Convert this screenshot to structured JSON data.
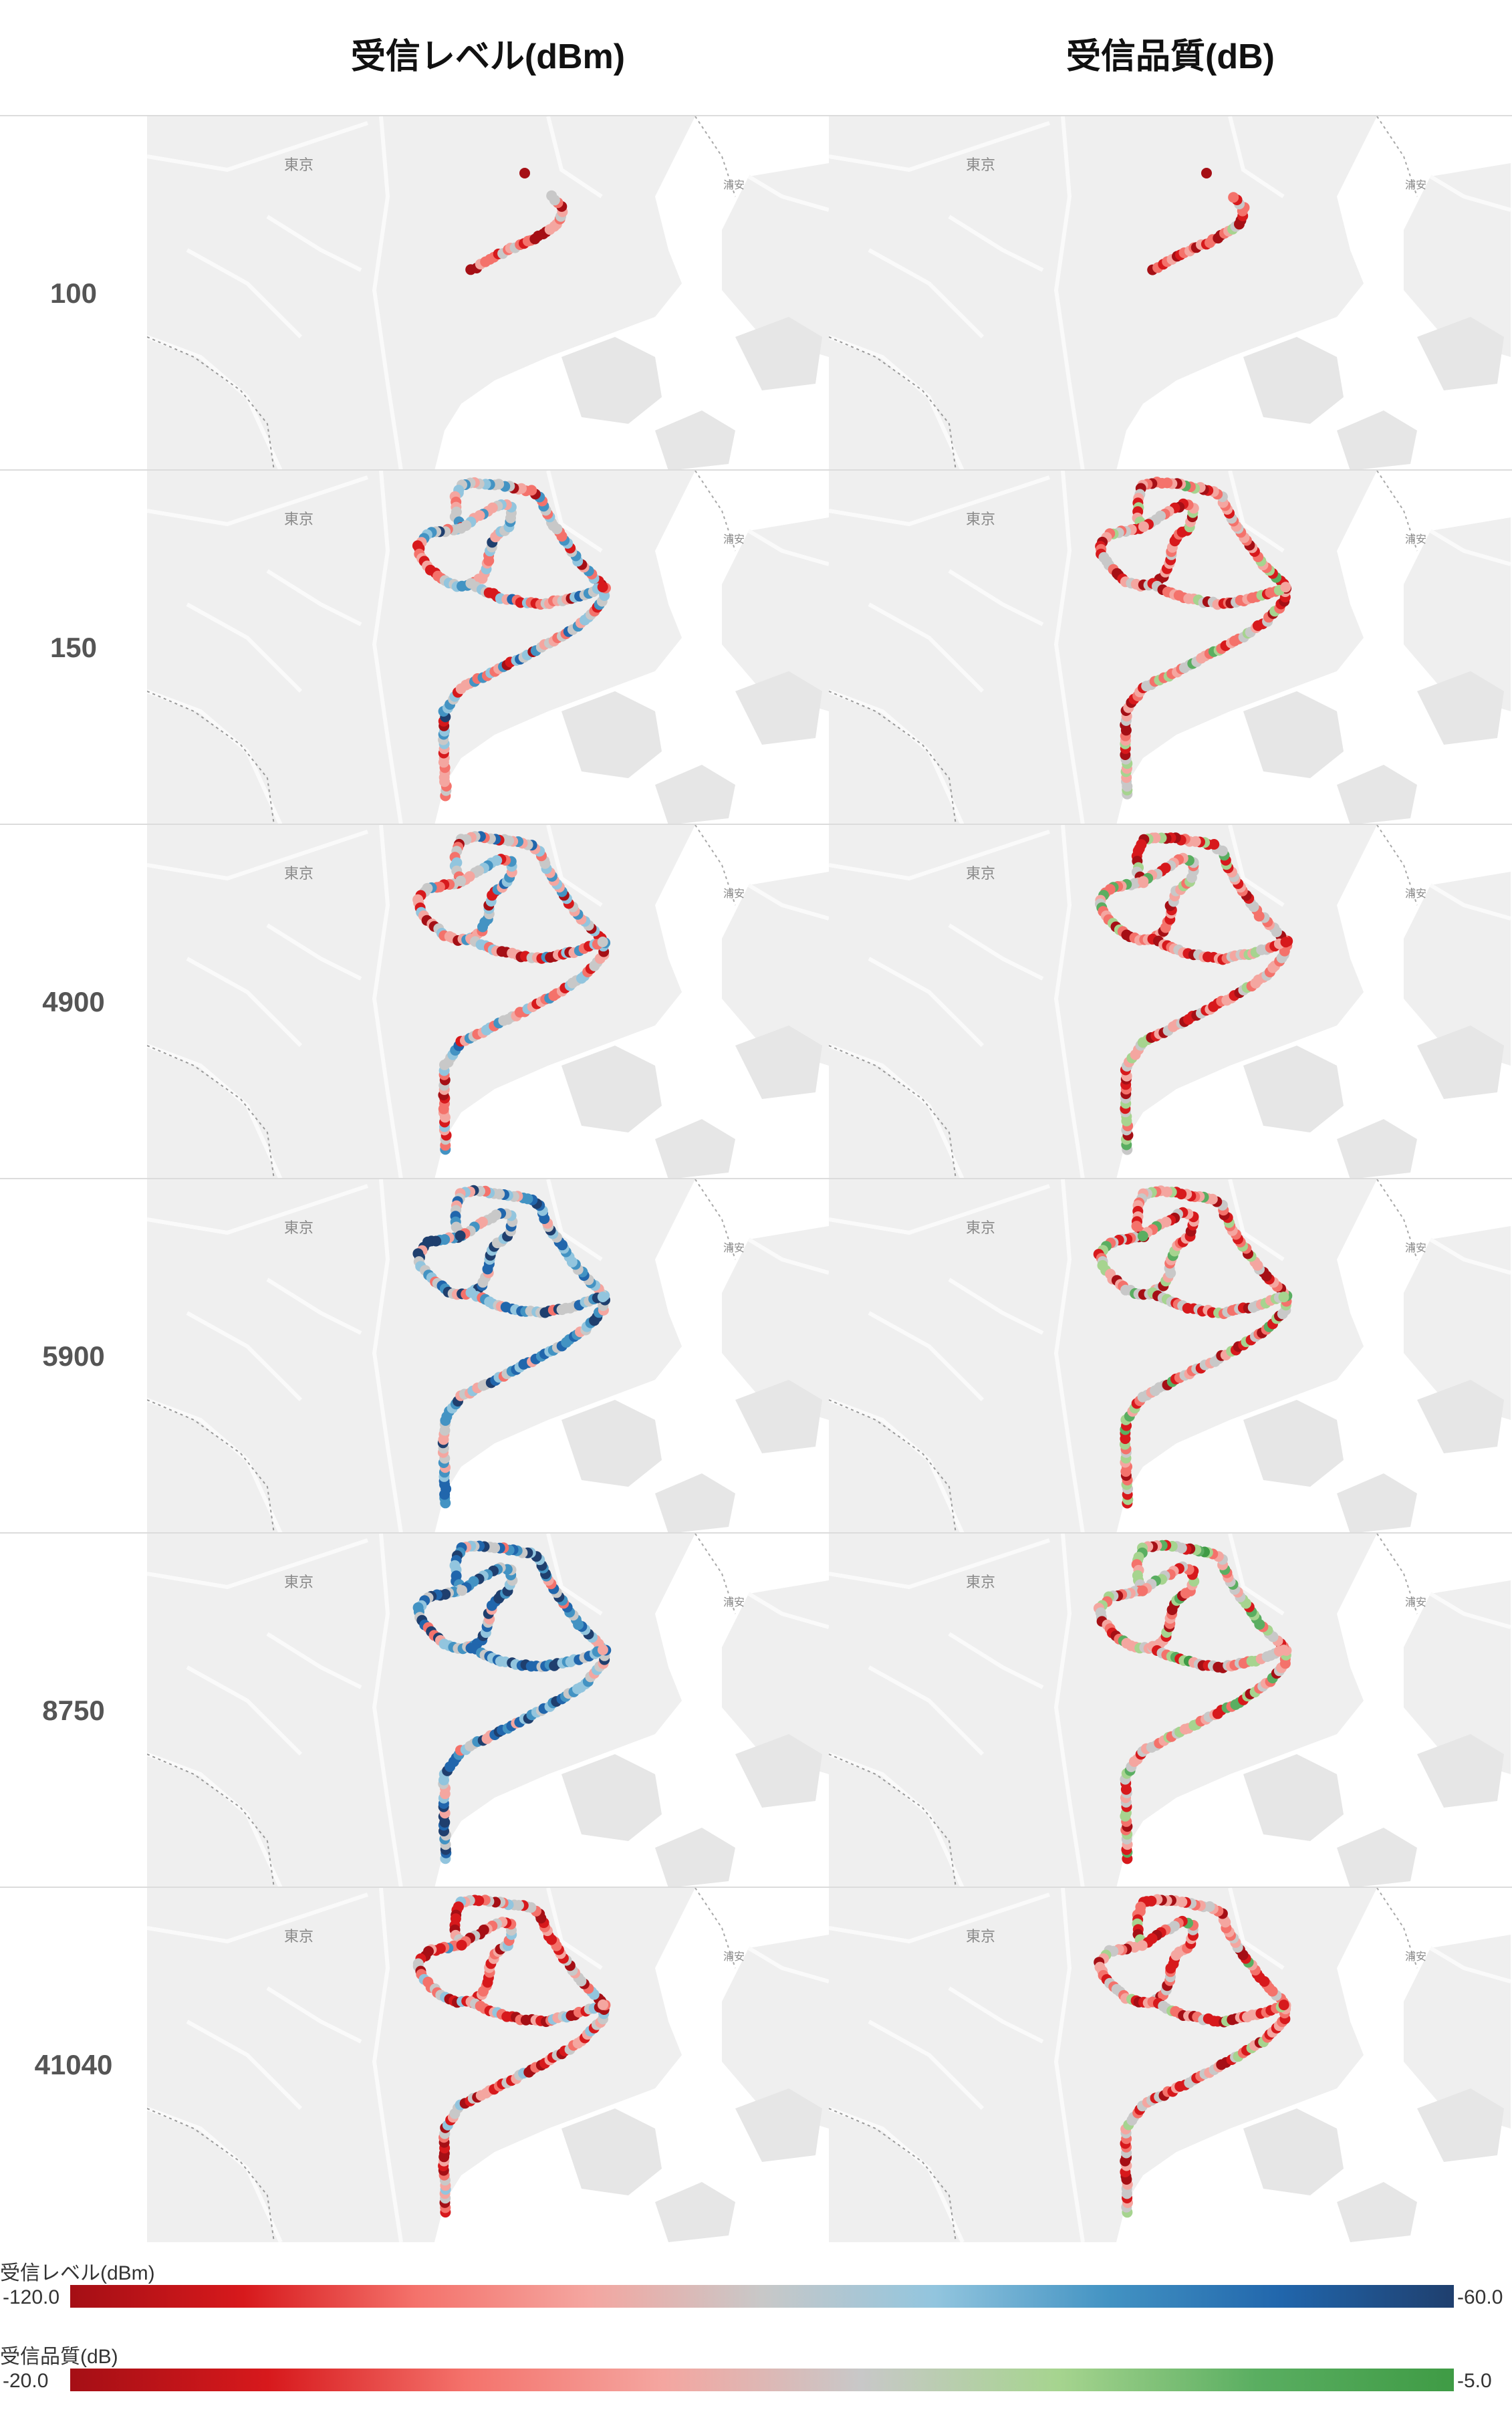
{
  "headers": {
    "col1": "受信レベル(dBm)",
    "col2": "受信品質(dB)"
  },
  "map_labels": {
    "city_left": "東京",
    "city_right": "浦安"
  },
  "rows": [
    {
      "label": "100"
    },
    {
      "label": "150"
    },
    {
      "label": "4900"
    },
    {
      "label": "5900"
    },
    {
      "label": "8750"
    },
    {
      "label": "41040"
    }
  ],
  "legends": [
    {
      "title": "受信レベル(dBm)",
      "min": "-120.0",
      "max": "-60.0",
      "colors": [
        "#a50f15",
        "#d7191c",
        "#f4726b",
        "#f4a6a0",
        "#c8c8c8",
        "#92c5de",
        "#4393c3",
        "#2166ac",
        "#1f3f6e"
      ]
    },
    {
      "title": "受信品質(dB)",
      "min": "-20.0",
      "max": "-5.0",
      "colors": [
        "#a50f15",
        "#d7191c",
        "#f4726b",
        "#f4a6a0",
        "#c8c8c8",
        "#a6d48f",
        "#5aae61",
        "#3f9b45"
      ]
    }
  ],
  "colors": {
    "level_red": "#c0141c",
    "level_blue": "#2c73b4",
    "quality_red": "#c0141c",
    "quality_green": "#4fa64f",
    "map_background": "#efefef",
    "water": "#ffffff"
  }
}
